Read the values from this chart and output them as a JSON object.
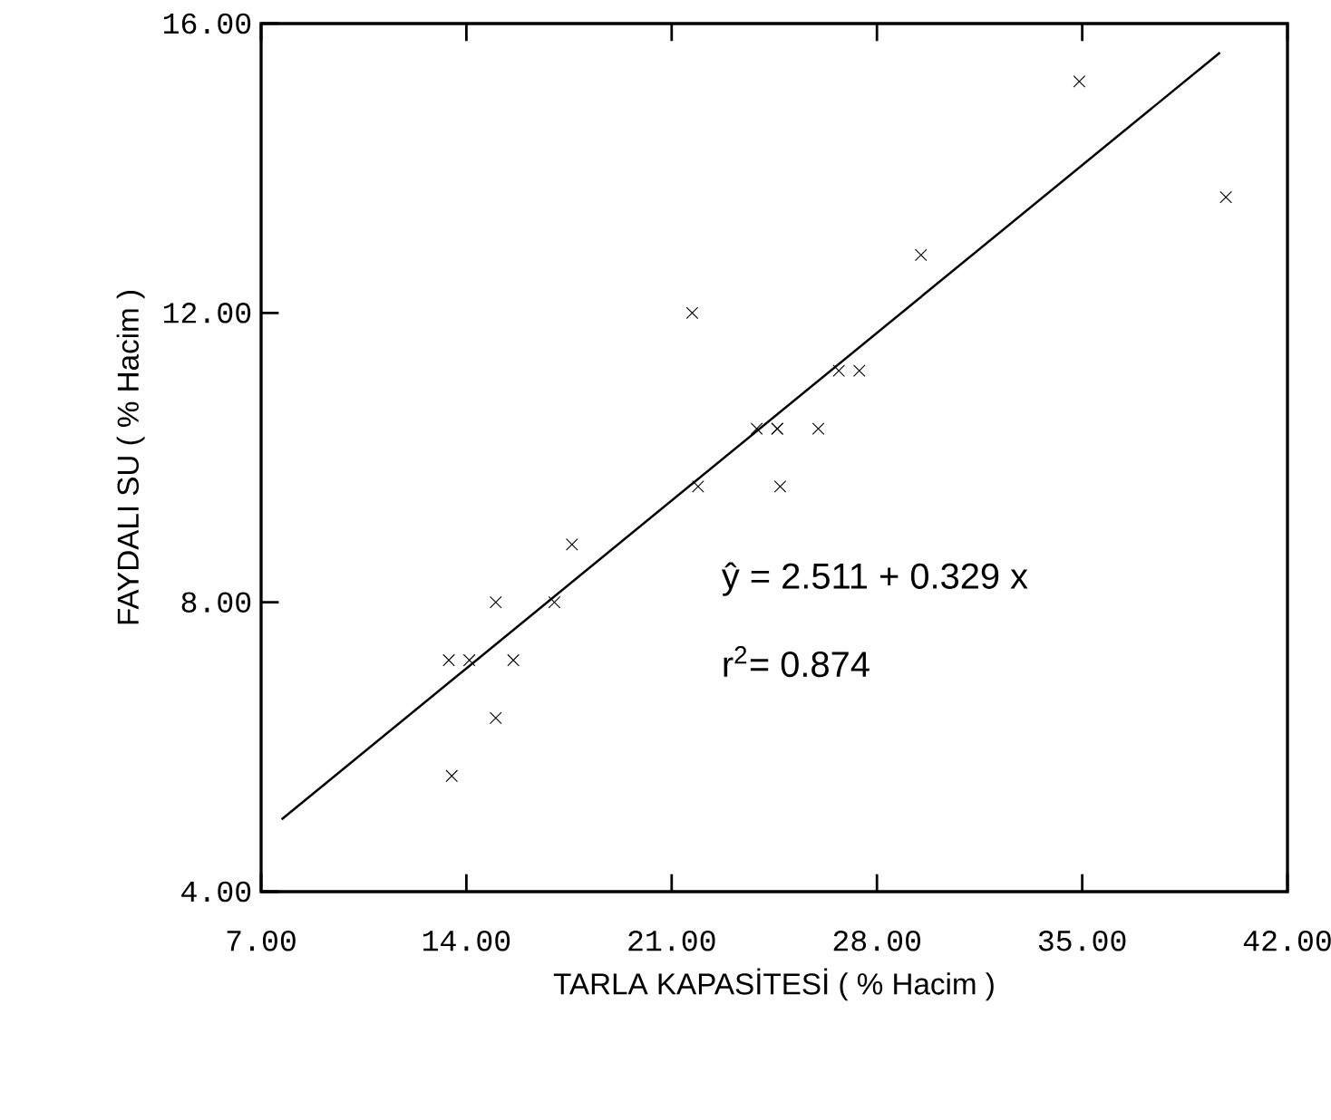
{
  "chart_data": {
    "type": "scatter",
    "xlabel": "TARLA KAPASİTESİ ( % Hacim )",
    "ylabel": "FAYDALI SU ( % Hacim )",
    "xlim": [
      7,
      42
    ],
    "ylim": [
      4,
      16
    ],
    "xticks": [
      {
        "value": 7,
        "label": "7.00"
      },
      {
        "value": 14,
        "label": "14.00"
      },
      {
        "value": 21,
        "label": "21.00"
      },
      {
        "value": 28,
        "label": "28.00"
      },
      {
        "value": 35,
        "label": "35.00"
      },
      {
        "value": 42,
        "label": "42.00"
      }
    ],
    "yticks": [
      {
        "value": 4,
        "label": "4.00"
      },
      {
        "value": 8,
        "label": "8.00"
      },
      {
        "value": 12,
        "label": "12.00"
      },
      {
        "value": 16,
        "label": "16.00"
      }
    ],
    "marker": "cross",
    "grid": false,
    "series": [
      {
        "color": "#000000",
        "x": [
          34.9,
          39.9,
          29.5,
          21.7,
          26.7,
          27.4,
          23.9,
          24.6,
          24.6,
          26.0,
          21.9,
          24.7,
          17.6,
          15.0,
          17.0,
          13.4,
          14.1,
          15.6,
          15.0,
          13.5
        ],
        "values": [
          15.2,
          13.6,
          12.8,
          12.0,
          11.2,
          11.2,
          10.4,
          10.4,
          10.4,
          10.4,
          9.6,
          9.6,
          8.8,
          8.0,
          8.0,
          7.2,
          7.2,
          7.2,
          6.4,
          5.6
        ]
      },
      {
        "type": "line",
        "color": "#000000",
        "marker": "none",
        "x": [
          7.7,
          39.7
        ],
        "values": [
          5.0,
          15.6
        ]
      }
    ],
    "annotations": [
      "ŷ  = 2.511 + 0.329 x",
      "r$^{2}$= 0.874"
    ]
  }
}
